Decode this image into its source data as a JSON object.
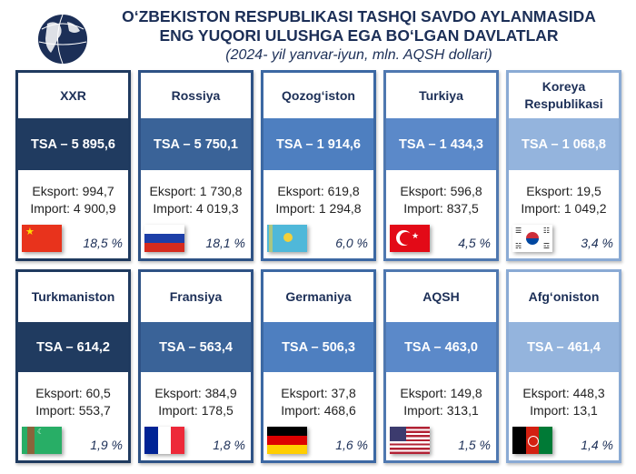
{
  "header": {
    "title_line1": "O‘ZBEKISTON RESPUBLIKASI TASHQI SAVDO AYLANMASIDA",
    "title_line2": "ENG YUQORI ULUSHGA EGA BO‘LGAN DAVLATLAR",
    "subtitle": "(2024- yil yanvar-iyun, mln. AQSH dollari)",
    "logo_icon": "globe-icon"
  },
  "countries": [
    {
      "name": "XXR",
      "tsa": "TSA – 5 895,6",
      "eksport": "Eksport: 994,7",
      "import": "Import: 4 900,9",
      "share": "18,5 %",
      "flag": "china-flag-icon",
      "band_color": "#203b60",
      "border_color": "#1f3a5f"
    },
    {
      "name": "Rossiya",
      "tsa": "TSA – 5 750,1",
      "eksport": "Eksport: 1 730,8",
      "import": "Import: 4 019,3",
      "share": "18,1 %",
      "flag": "russia-flag-icon",
      "band_color": "#3a6398",
      "border_color": "#2e5285"
    },
    {
      "name": "Qozog‘iston",
      "tsa": "TSA – 1 914,6",
      "eksport": "Eksport: 619,8",
      "import": "Import: 1 294,8",
      "share": "6,0 %",
      "flag": "kazakhstan-flag-icon",
      "band_color": "#4e7fc0",
      "border_color": "#3c68a3"
    },
    {
      "name": "Turkiya",
      "tsa": "TSA – 1 434,3",
      "eksport": "Eksport: 596,8",
      "import": "Import: 837,5",
      "share": "4,5 %",
      "flag": "turkey-flag-icon",
      "band_color": "#5b89c9",
      "border_color": "#4f78b0"
    },
    {
      "name": "Koreya Respublikasi",
      "tsa": "TSA – 1 068,8",
      "eksport": "Eksport: 19,5",
      "import": "Import: 1 049,2",
      "share": "3,4 %",
      "flag": "south-korea-flag-icon",
      "band_color": "#94b4dd",
      "border_color": "#8aaad4"
    },
    {
      "name": "Turkmaniston",
      "tsa": "TSA – 614,2",
      "eksport": "Eksport: 60,5",
      "import": "Import: 553,7",
      "share": "1,9 %",
      "flag": "turkmenistan-flag-icon",
      "band_color": "#203b60",
      "border_color": "#1f3a5f"
    },
    {
      "name": "Fransiya",
      "tsa": "TSA – 563,4",
      "eksport": "Eksport: 384,9",
      "import": "Import: 178,5",
      "share": "1,8 %",
      "flag": "france-flag-icon",
      "band_color": "#3a6398",
      "border_color": "#2e5285"
    },
    {
      "name": "Germaniya",
      "tsa": "TSA – 506,3",
      "eksport": "Eksport: 37,8",
      "import": "Import: 468,6",
      "share": "1,6 %",
      "flag": "germany-flag-icon",
      "band_color": "#4e7fc0",
      "border_color": "#3c68a3"
    },
    {
      "name": "AQSH",
      "tsa": "TSA – 463,0",
      "eksport": "Eksport: 149,8",
      "import": "Import: 313,1",
      "share": "1,5 %",
      "flag": "usa-flag-icon",
      "band_color": "#5b89c9",
      "border_color": "#4f78b0"
    },
    {
      "name": "Afg‘oniston",
      "tsa": "TSA – 461,4",
      "eksport": "Eksport: 448,3",
      "import": "Import: 13,1",
      "share": "1,4 %",
      "flag": "afghanistan-flag-icon",
      "band_color": "#94b4dd",
      "border_color": "#8aaad4"
    }
  ]
}
